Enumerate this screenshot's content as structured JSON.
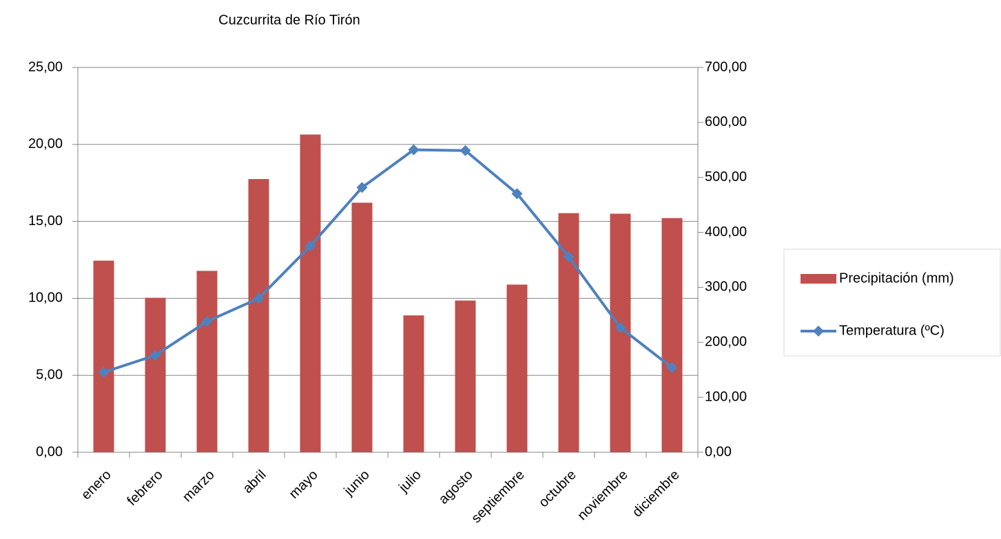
{
  "chart_data": {
    "type": "bar-line",
    "title": "Cuzcurrita de Río Tirón",
    "categories": [
      "enero",
      "febrero",
      "marzo",
      "abril",
      "mayo",
      "junio",
      "julio",
      "agosto",
      "septiembre",
      "octubre",
      "noviembre",
      "diciembre"
    ],
    "series": [
      {
        "name": "Precipitación (mm)",
        "type": "bar",
        "color": "#c0504d",
        "axis": "y2",
        "values": [
          348.6,
          281,
          330,
          497,
          578,
          454,
          249,
          276,
          305,
          435,
          434,
          426
        ]
      },
      {
        "name": "Temperatura (ºC)",
        "type": "line",
        "color": "#4f81bd",
        "axis": "y",
        "values": [
          5.2,
          6.3,
          8.5,
          10.0,
          13.4,
          17.2,
          19.65,
          19.6,
          16.8,
          12.7,
          8.1,
          5.5
        ]
      }
    ],
    "ylim": [
      0,
      25
    ],
    "yticks": [
      {
        "value": 0,
        "label": "0,00"
      },
      {
        "value": 5,
        "label": "5,00"
      },
      {
        "value": 10,
        "label": "10,00"
      },
      {
        "value": 15,
        "label": "15,00"
      },
      {
        "value": 20,
        "label": "20,00"
      },
      {
        "value": 25,
        "label": "25,00"
      }
    ],
    "y2lim": [
      0,
      700
    ],
    "y2ticks": [
      {
        "value": 0,
        "label": "0,00"
      },
      {
        "value": 100,
        "label": "100,00"
      },
      {
        "value": 200,
        "label": "200,00"
      },
      {
        "value": 300,
        "label": "300,00"
      },
      {
        "value": 400,
        "label": "400,00"
      },
      {
        "value": 500,
        "label": "500,00"
      },
      {
        "value": 600,
        "label": "600,00"
      },
      {
        "value": 700,
        "label": "700,00"
      }
    ],
    "grid": true,
    "legend": "right"
  }
}
